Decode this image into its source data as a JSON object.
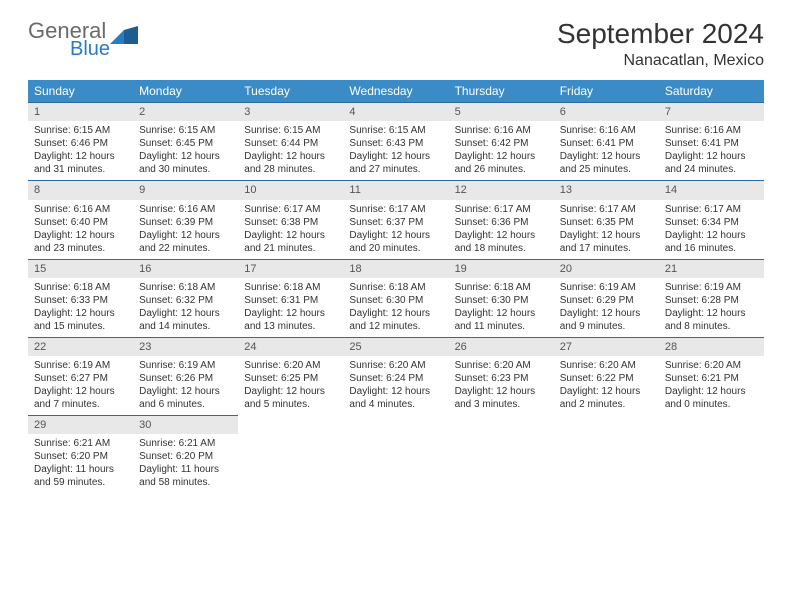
{
  "brand": {
    "main": "General",
    "sub": "Blue"
  },
  "title": "September 2024",
  "location": "Nanacatlan, Mexico",
  "colors": {
    "header_bg": "#3b8bc7",
    "header_text": "#ffffff",
    "daynum_bg": "#e8e8e8",
    "daynum_text": "#555555",
    "row_border": "#2a6ca0",
    "body_text": "#333333",
    "logo_gray": "#6a6a6a",
    "logo_blue": "#2a7bbf"
  },
  "weekdays": [
    "Sunday",
    "Monday",
    "Tuesday",
    "Wednesday",
    "Thursday",
    "Friday",
    "Saturday"
  ],
  "layout": {
    "cols": 7,
    "rows": 5,
    "cell_fontsize": 10,
    "header_fontsize": 12
  },
  "days": [
    {
      "n": "1",
      "sunrise": "Sunrise: 6:15 AM",
      "sunset": "Sunset: 6:46 PM",
      "daylight": "Daylight: 12 hours and 31 minutes."
    },
    {
      "n": "2",
      "sunrise": "Sunrise: 6:15 AM",
      "sunset": "Sunset: 6:45 PM",
      "daylight": "Daylight: 12 hours and 30 minutes."
    },
    {
      "n": "3",
      "sunrise": "Sunrise: 6:15 AM",
      "sunset": "Sunset: 6:44 PM",
      "daylight": "Daylight: 12 hours and 28 minutes."
    },
    {
      "n": "4",
      "sunrise": "Sunrise: 6:15 AM",
      "sunset": "Sunset: 6:43 PM",
      "daylight": "Daylight: 12 hours and 27 minutes."
    },
    {
      "n": "5",
      "sunrise": "Sunrise: 6:16 AM",
      "sunset": "Sunset: 6:42 PM",
      "daylight": "Daylight: 12 hours and 26 minutes."
    },
    {
      "n": "6",
      "sunrise": "Sunrise: 6:16 AM",
      "sunset": "Sunset: 6:41 PM",
      "daylight": "Daylight: 12 hours and 25 minutes."
    },
    {
      "n": "7",
      "sunrise": "Sunrise: 6:16 AM",
      "sunset": "Sunset: 6:41 PM",
      "daylight": "Daylight: 12 hours and 24 minutes."
    },
    {
      "n": "8",
      "sunrise": "Sunrise: 6:16 AM",
      "sunset": "Sunset: 6:40 PM",
      "daylight": "Daylight: 12 hours and 23 minutes."
    },
    {
      "n": "9",
      "sunrise": "Sunrise: 6:16 AM",
      "sunset": "Sunset: 6:39 PM",
      "daylight": "Daylight: 12 hours and 22 minutes."
    },
    {
      "n": "10",
      "sunrise": "Sunrise: 6:17 AM",
      "sunset": "Sunset: 6:38 PM",
      "daylight": "Daylight: 12 hours and 21 minutes."
    },
    {
      "n": "11",
      "sunrise": "Sunrise: 6:17 AM",
      "sunset": "Sunset: 6:37 PM",
      "daylight": "Daylight: 12 hours and 20 minutes."
    },
    {
      "n": "12",
      "sunrise": "Sunrise: 6:17 AM",
      "sunset": "Sunset: 6:36 PM",
      "daylight": "Daylight: 12 hours and 18 minutes."
    },
    {
      "n": "13",
      "sunrise": "Sunrise: 6:17 AM",
      "sunset": "Sunset: 6:35 PM",
      "daylight": "Daylight: 12 hours and 17 minutes."
    },
    {
      "n": "14",
      "sunrise": "Sunrise: 6:17 AM",
      "sunset": "Sunset: 6:34 PM",
      "daylight": "Daylight: 12 hours and 16 minutes."
    },
    {
      "n": "15",
      "sunrise": "Sunrise: 6:18 AM",
      "sunset": "Sunset: 6:33 PM",
      "daylight": "Daylight: 12 hours and 15 minutes."
    },
    {
      "n": "16",
      "sunrise": "Sunrise: 6:18 AM",
      "sunset": "Sunset: 6:32 PM",
      "daylight": "Daylight: 12 hours and 14 minutes."
    },
    {
      "n": "17",
      "sunrise": "Sunrise: 6:18 AM",
      "sunset": "Sunset: 6:31 PM",
      "daylight": "Daylight: 12 hours and 13 minutes."
    },
    {
      "n": "18",
      "sunrise": "Sunrise: 6:18 AM",
      "sunset": "Sunset: 6:30 PM",
      "daylight": "Daylight: 12 hours and 12 minutes."
    },
    {
      "n": "19",
      "sunrise": "Sunrise: 6:18 AM",
      "sunset": "Sunset: 6:30 PM",
      "daylight": "Daylight: 12 hours and 11 minutes."
    },
    {
      "n": "20",
      "sunrise": "Sunrise: 6:19 AM",
      "sunset": "Sunset: 6:29 PM",
      "daylight": "Daylight: 12 hours and 9 minutes."
    },
    {
      "n": "21",
      "sunrise": "Sunrise: 6:19 AM",
      "sunset": "Sunset: 6:28 PM",
      "daylight": "Daylight: 12 hours and 8 minutes."
    },
    {
      "n": "22",
      "sunrise": "Sunrise: 6:19 AM",
      "sunset": "Sunset: 6:27 PM",
      "daylight": "Daylight: 12 hours and 7 minutes."
    },
    {
      "n": "23",
      "sunrise": "Sunrise: 6:19 AM",
      "sunset": "Sunset: 6:26 PM",
      "daylight": "Daylight: 12 hours and 6 minutes."
    },
    {
      "n": "24",
      "sunrise": "Sunrise: 6:20 AM",
      "sunset": "Sunset: 6:25 PM",
      "daylight": "Daylight: 12 hours and 5 minutes."
    },
    {
      "n": "25",
      "sunrise": "Sunrise: 6:20 AM",
      "sunset": "Sunset: 6:24 PM",
      "daylight": "Daylight: 12 hours and 4 minutes."
    },
    {
      "n": "26",
      "sunrise": "Sunrise: 6:20 AM",
      "sunset": "Sunset: 6:23 PM",
      "daylight": "Daylight: 12 hours and 3 minutes."
    },
    {
      "n": "27",
      "sunrise": "Sunrise: 6:20 AM",
      "sunset": "Sunset: 6:22 PM",
      "daylight": "Daylight: 12 hours and 2 minutes."
    },
    {
      "n": "28",
      "sunrise": "Sunrise: 6:20 AM",
      "sunset": "Sunset: 6:21 PM",
      "daylight": "Daylight: 12 hours and 0 minutes."
    },
    {
      "n": "29",
      "sunrise": "Sunrise: 6:21 AM",
      "sunset": "Sunset: 6:20 PM",
      "daylight": "Daylight: 11 hours and 59 minutes."
    },
    {
      "n": "30",
      "sunrise": "Sunrise: 6:21 AM",
      "sunset": "Sunset: 6:20 PM",
      "daylight": "Daylight: 11 hours and 58 minutes."
    }
  ]
}
